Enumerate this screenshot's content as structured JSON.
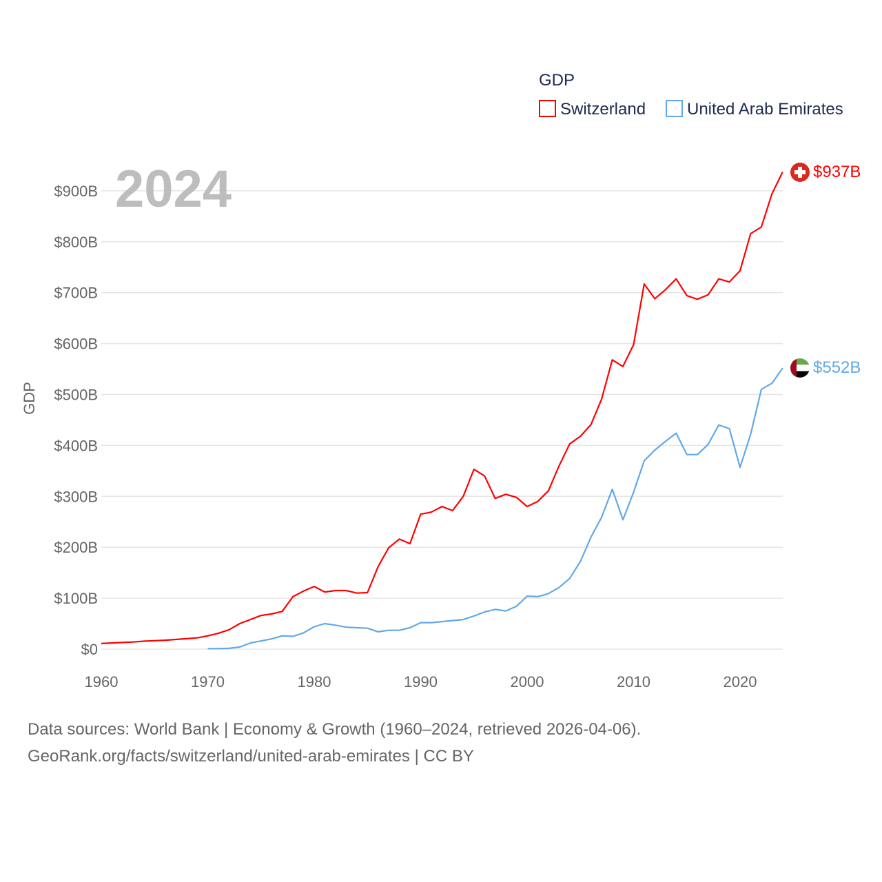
{
  "chart_data": {
    "type": "line",
    "title": "",
    "legend_title": "GDP",
    "legend_position": "top-right",
    "year_label": "2024",
    "ylabel": "GDP",
    "xlabel": "",
    "xlim": [
      1960,
      2024
    ],
    "ylim": [
      0,
      937
    ],
    "grid": true,
    "x_ticks": [
      "1960",
      "1970",
      "1980",
      "1990",
      "2000",
      "2010",
      "2020"
    ],
    "x_tick_values": [
      1960,
      1970,
      1980,
      1990,
      2000,
      2010,
      2020
    ],
    "y_ticks": [
      "$0",
      "$100B",
      "$200B",
      "$300B",
      "$400B",
      "$500B",
      "$600B",
      "$700B",
      "$800B",
      "$900B"
    ],
    "y_tick_values": [
      0,
      100,
      200,
      300,
      400,
      500,
      600,
      700,
      800,
      900
    ],
    "series": [
      {
        "name": "Switzerland",
        "color": "#ff0000",
        "end_label": "$937B",
        "flag": "switzerland-flag",
        "start": 1960,
        "values": [
          11,
          12,
          13,
          14,
          15.5,
          16.5,
          17.5,
          19,
          20.5,
          22,
          26,
          31,
          38,
          50,
          58,
          66,
          69,
          74,
          103,
          114,
          123,
          112,
          115,
          115,
          110,
          111,
          162,
          199,
          216,
          207,
          265,
          269,
          280,
          272,
          300,
          353,
          340,
          296,
          304,
          298,
          280,
          290,
          311,
          360,
          403,
          418,
          441,
          491,
          568,
          555,
          598,
          717,
          688,
          706,
          727,
          694,
          687,
          696,
          727,
          721,
          743,
          816,
          829,
          894,
          937
        ]
      },
      {
        "name": "United Arab Emirates",
        "color": "#62a8e8",
        "end_label": "$552B",
        "flag": "uae-flag",
        "start": 1970,
        "values": [
          1,
          1,
          1.5,
          4,
          12,
          16,
          20,
          26,
          25,
          32,
          44,
          50,
          47,
          43,
          42,
          41,
          34,
          37,
          37,
          42,
          52,
          52,
          54,
          56,
          58,
          65,
          73,
          78,
          75,
          84,
          104,
          103,
          109,
          121,
          139,
          172,
          220,
          259,
          314,
          254,
          308,
          370,
          391,
          408,
          424,
          382,
          382,
          402,
          440,
          433,
          357,
          422,
          510,
          522,
          552
        ]
      }
    ]
  },
  "footer": {
    "line1": "Data sources: World Bank | Economy & Growth (1960–2024, retrieved 2026-04-06).",
    "line2": "GeoRank.org/facts/switzerland/united-arab-emirates | CC BY"
  }
}
